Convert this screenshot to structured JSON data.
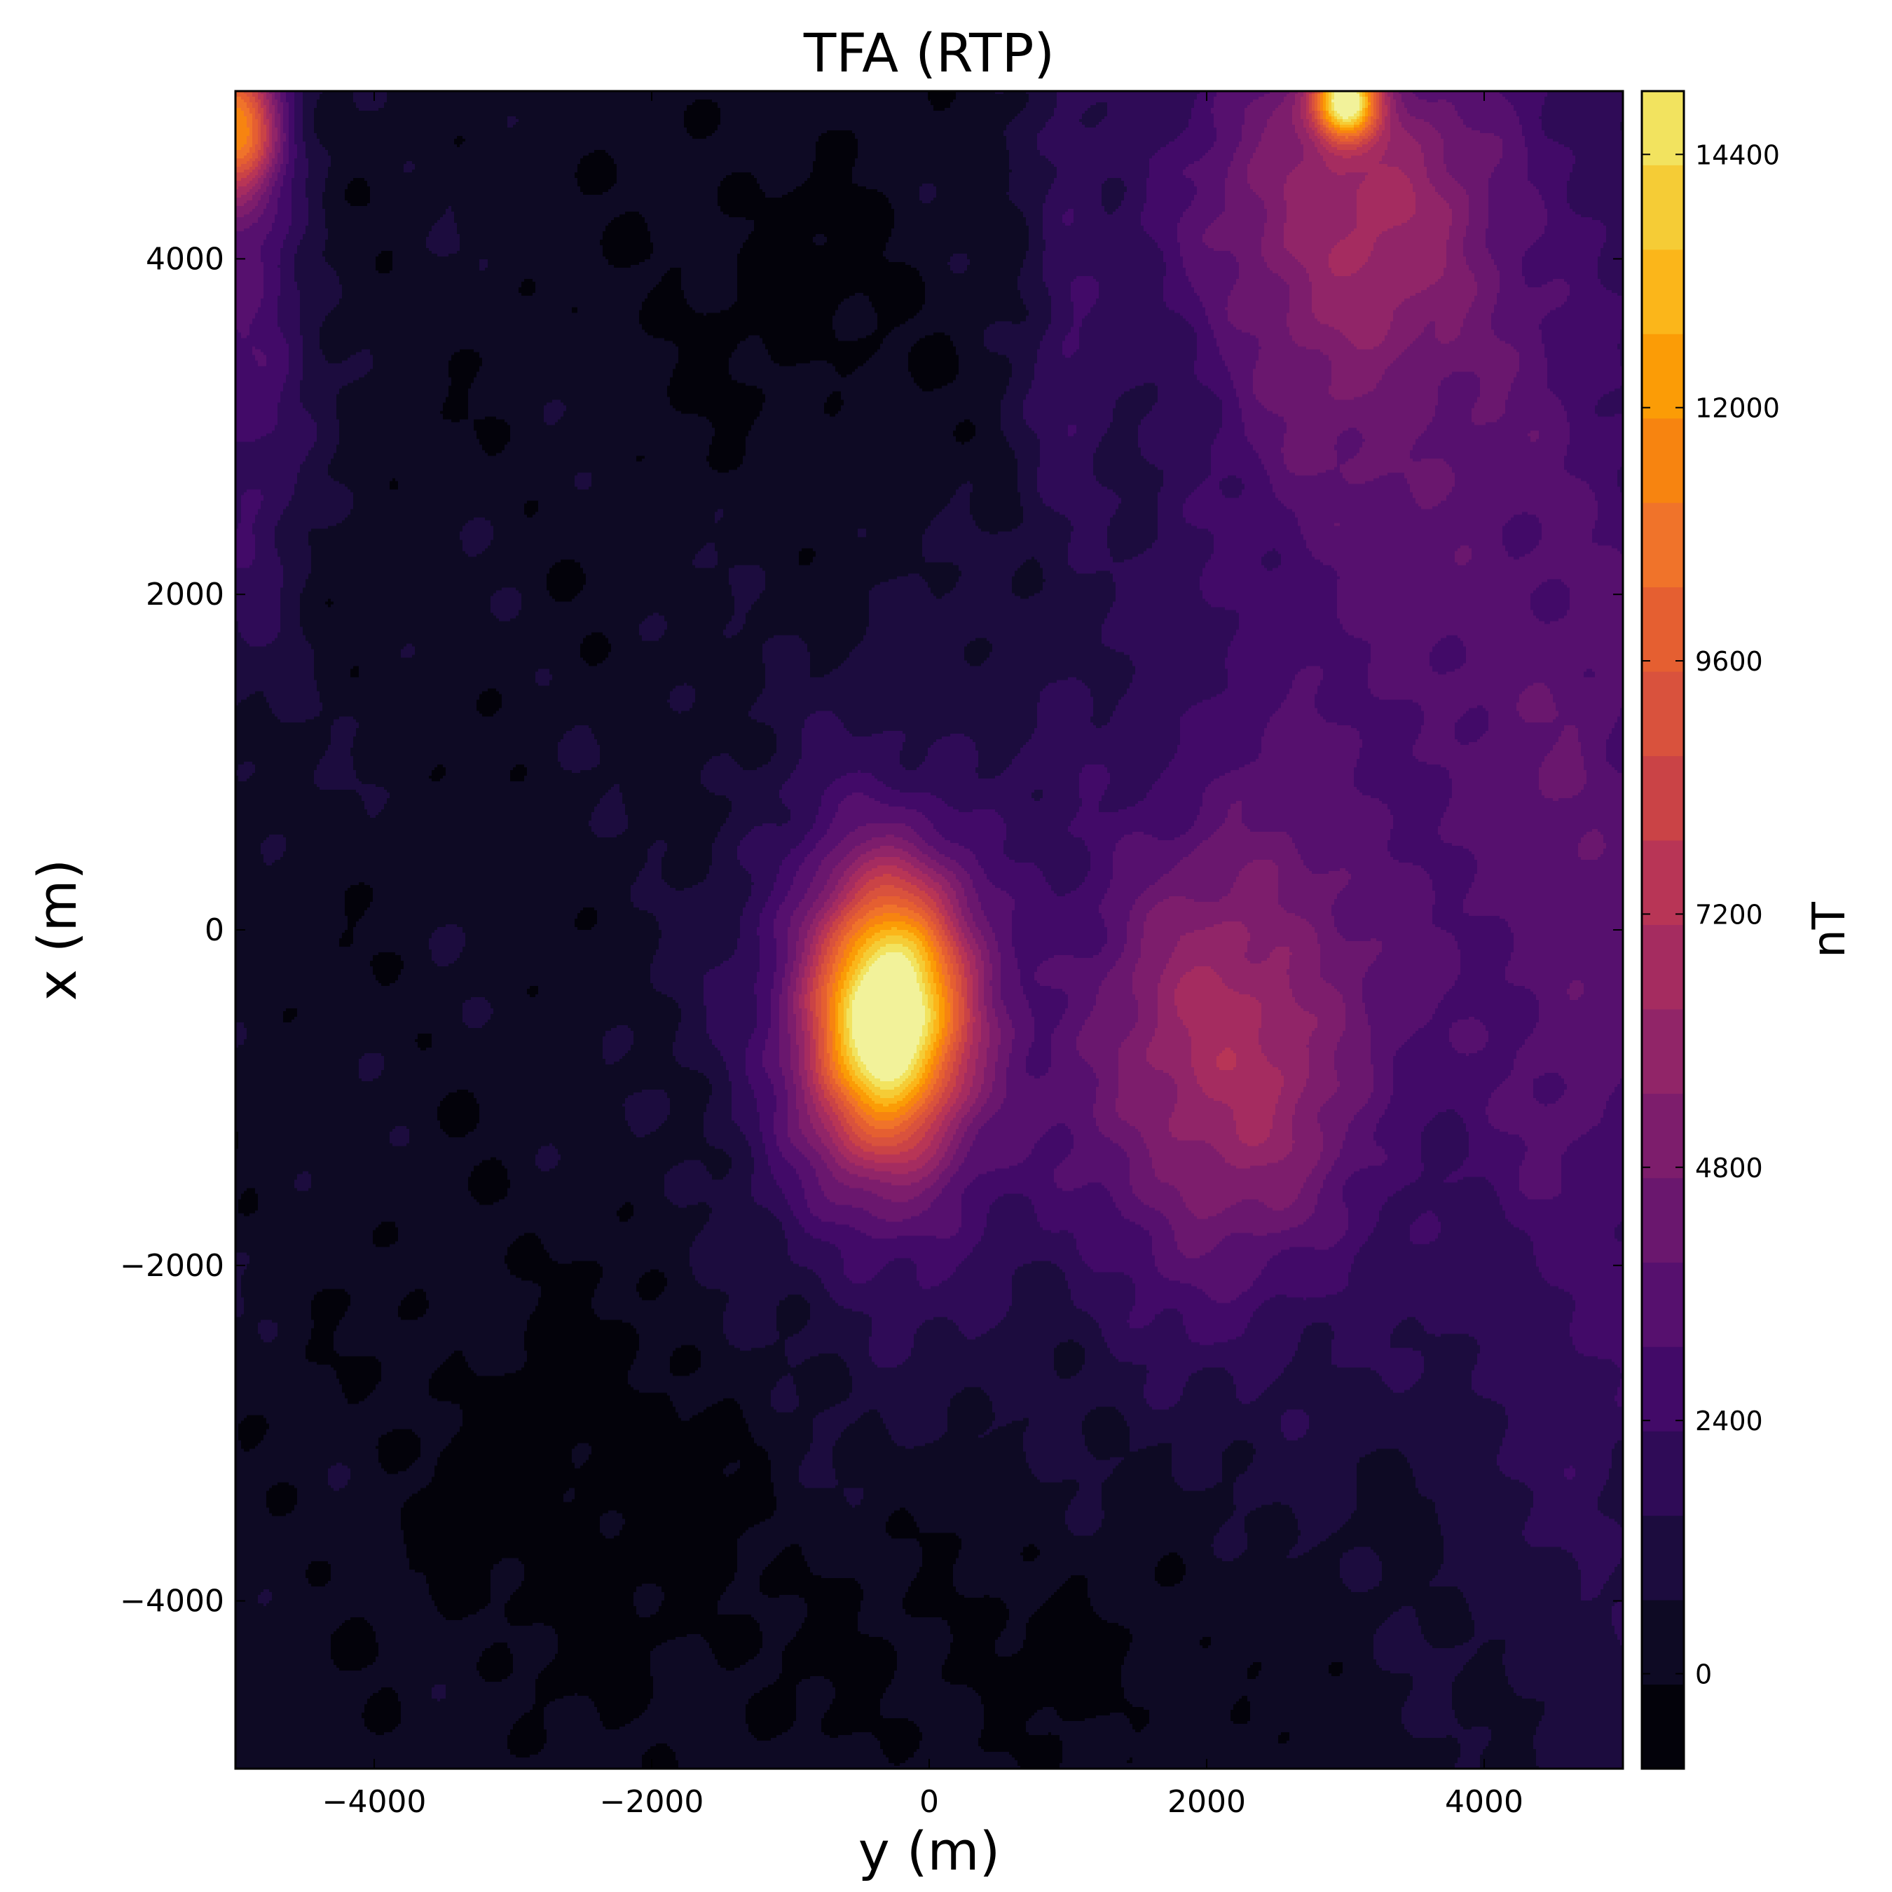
{
  "chart_data": {
    "type": "heatmap",
    "title": "TFA (RTP)",
    "xlabel": "y (m)",
    "ylabel": "x (m)",
    "xlim": [
      -5000,
      5000
    ],
    "ylim": [
      -5000,
      5000
    ],
    "x_ticks": [
      -4000,
      -2000,
      0,
      2000,
      4000
    ],
    "y_ticks": [
      -4000,
      -2000,
      0,
      2000,
      4000
    ],
    "x_tick_labels": [
      "−4000",
      "−2000",
      "0",
      "2000",
      "4000"
    ],
    "y_tick_labels": [
      "−4000",
      "−2000",
      "0",
      "2000",
      "4000"
    ],
    "colormap": "inferno",
    "colorbar": {
      "label": "nT",
      "range": [
        -900,
        15000
      ],
      "ticks": [
        0,
        2400,
        4800,
        7200,
        9600,
        12000,
        14400
      ],
      "tick_labels": [
        "0",
        "2400",
        "4800",
        "7200",
        "9600",
        "12000",
        "14400"
      ],
      "levels": [
        -900,
        -100,
        700,
        1500,
        2300,
        3100,
        3900,
        4700,
        5500,
        6300,
        7100,
        7900,
        8700,
        9500,
        10300,
        11100,
        11900,
        12700,
        13500,
        14300,
        15000
      ],
      "colors": [
        "#03020a",
        "#0e0a24",
        "#1c0c3e",
        "#2f0b57",
        "#420a68",
        "#56106e",
        "#6a176e",
        "#7d1d6c",
        "#912568",
        "#a52c60",
        "#b83556",
        "#ca4346",
        "#d9523d",
        "#e55f31",
        "#f0732a",
        "#f78410",
        "#fb9c06",
        "#fbb61a",
        "#f5cc36",
        "#f2e35f",
        "#f2f29a"
      ]
    },
    "features": [
      {
        "name": "main peak",
        "x": -250,
        "y": -550,
        "value": 14800
      },
      {
        "name": "secondary high",
        "x": 2100,
        "y": -800,
        "value": 6200
      },
      {
        "name": "edge high top",
        "x": 3000,
        "y": 4950,
        "value": 12500
      },
      {
        "name": "corner high",
        "x": -4900,
        "y": 4800,
        "value": 10500
      }
    ]
  }
}
